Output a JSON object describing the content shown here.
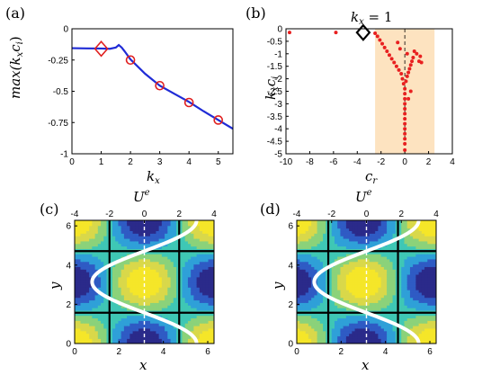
{
  "chart_data": [
    {
      "panel": "(a)",
      "type": "line",
      "xlabel": "k_x",
      "ylabel": "max(k_x c_i)",
      "xlim": [
        0,
        5.5
      ],
      "ylim": [
        -1,
        0
      ],
      "xticks": [
        "0",
        "1",
        "2",
        "3",
        "4",
        "5"
      ],
      "yticks": [
        "0",
        "-0.25",
        "-0.5",
        "-0.75",
        "-1"
      ],
      "series": [
        {
          "kind": "line",
          "color": "#1f2bd6",
          "x": [
            0,
            0.5,
            1.0,
            1.3,
            1.5,
            1.6,
            1.7,
            1.8,
            2.0,
            2.5,
            3.0,
            3.5,
            4.0,
            4.5,
            5.0,
            5.5
          ],
          "y": [
            -0.155,
            -0.157,
            -0.158,
            -0.16,
            -0.15,
            -0.13,
            -0.15,
            -0.18,
            -0.245,
            -0.36,
            -0.455,
            -0.52,
            -0.585,
            -0.66,
            -0.73,
            -0.8
          ]
        },
        {
          "kind": "circles",
          "color": "#e02020",
          "x": [
            2,
            3,
            4,
            5
          ],
          "y": [
            -0.25,
            -0.455,
            -0.59,
            -0.73
          ]
        },
        {
          "kind": "diamond",
          "color": "#e02020",
          "x": [
            1
          ],
          "y": [
            -0.16
          ]
        }
      ]
    },
    {
      "panel": "(b)",
      "type": "scatter",
      "title": "k_x = 1",
      "xlabel": "c_r",
      "ylabel": "k_x c_i",
      "xlim": [
        -10,
        4
      ],
      "ylim": [
        -5,
        0
      ],
      "xticks": [
        "-10",
        "-8",
        "-6",
        "-4",
        "-2",
        "0",
        "2",
        "4"
      ],
      "yticks": [
        "0",
        "-0.5",
        "-1",
        "-1.5",
        "-2",
        "-2.5",
        "-3",
        "-3.5",
        "-4",
        "-4.5",
        "-5"
      ],
      "shade": [
        -2.5,
        2.5
      ],
      "shade_color": "#fde3c0",
      "points": {
        "color": "#e82020",
        "x": [
          -9.7,
          -5.8,
          -2.5,
          -2.3,
          -2.1,
          -1.9,
          -1.7,
          -1.5,
          -1.3,
          -1.1,
          -0.9,
          -0.7,
          -0.5,
          -0.3,
          -0.2,
          -0.1,
          0.0,
          0.0,
          0.0,
          0.0,
          0.0,
          0.0,
          0.0,
          0.0,
          0.0,
          0.0,
          0.0,
          0.0,
          0.0,
          0.1,
          0.2,
          0.3,
          0.4,
          0.5,
          0.6,
          0.7,
          0.8,
          1.0,
          1.2,
          1.3,
          1.4,
          -0.4,
          -0.6,
          0.5,
          0.3,
          0.2
        ],
        "y": [
          -0.15,
          -0.15,
          -0.18,
          -0.3,
          -0.45,
          -0.6,
          -0.75,
          -0.9,
          -1.05,
          -1.2,
          -1.35,
          -1.5,
          -1.65,
          -1.8,
          -2.0,
          -2.2,
          -2.4,
          -2.6,
          -2.8,
          -3.0,
          -3.2,
          -3.4,
          -3.6,
          -3.8,
          -4.0,
          -4.2,
          -4.4,
          -4.6,
          -4.85,
          -2.1,
          -1.9,
          -1.75,
          -1.6,
          -1.45,
          -1.3,
          -1.15,
          -0.9,
          -1.0,
          -1.3,
          -1.1,
          -1.35,
          -0.8,
          -0.55,
          -2.5,
          -2.8,
          -1.0
        ]
      },
      "highlight": {
        "x": -3.5,
        "y": -0.15,
        "marker": "diamond",
        "color": "#000000"
      }
    },
    {
      "panel": "(c)",
      "type": "heatmap",
      "title": "U^e",
      "xlabel": "x",
      "ylabel": "y",
      "xticks": [
        "0",
        "2",
        "4",
        "6"
      ],
      "yticks": [
        "0",
        "2",
        "4",
        "6"
      ],
      "top_ticks": [
        "-4",
        "-2",
        "0",
        "2",
        "4"
      ],
      "xlim": [
        0,
        6.2832
      ],
      "ylim": [
        0,
        6.2832
      ],
      "top_lim": [
        -4,
        4
      ],
      "profile_amplitude": 3,
      "field_phase": 0
    },
    {
      "panel": "(d)",
      "type": "heatmap",
      "title": "U^e",
      "xlabel": "x",
      "ylabel": "y",
      "xticks": [
        "0",
        "2",
        "4",
        "6"
      ],
      "yticks": [
        "0",
        "2",
        "4",
        "6"
      ],
      "top_ticks": [
        "-4",
        "-2",
        "0",
        "2",
        "4"
      ],
      "xlim": [
        0,
        6.2832
      ],
      "ylim": [
        0,
        6.2832
      ],
      "top_lim": [
        -4,
        4
      ],
      "profile_amplitude": 3,
      "field_phase": 0.15
    }
  ],
  "labels": {
    "a": "(a)",
    "b": "(b)",
    "c": "(c)",
    "d": "(d)",
    "a_ylabel": "max(k",
    "a_ysub": "x",
    "a_ylabel2": "c",
    "a_ysub2": "i",
    "a_ylabel3": ")",
    "kx": "k",
    "kx_sub": "x",
    "b_title": "k",
    "b_title_sub": "x",
    "b_title_rest": " = 1",
    "b_ylabel": "k",
    "b_ysub": "x",
    "b_ylabel2": "c",
    "b_ysub2": "i",
    "cr": "c",
    "cr_sub": "r",
    "ue": "U",
    "ue_sup": "e",
    "x": "x",
    "y": "y"
  }
}
